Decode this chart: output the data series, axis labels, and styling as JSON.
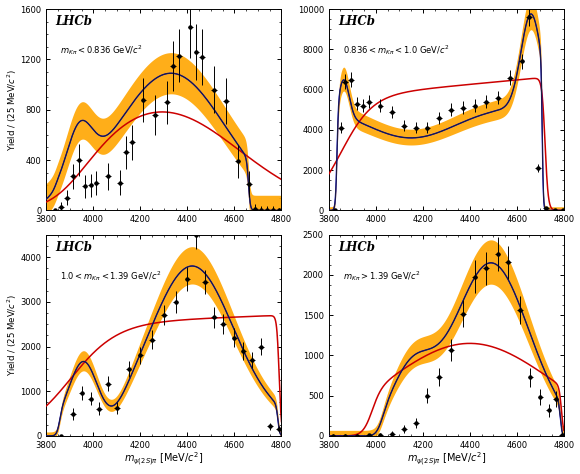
{
  "panels": [
    {
      "label": "$m_{K\\pi} < 0.836$ GeV/$c^2$",
      "ylim": [
        0,
        1600
      ],
      "yticks": [
        0,
        400,
        800,
        1200,
        1600
      ],
      "ylabel": "Yield / (25 MeV/$c^2$)"
    },
    {
      "label": "$0.836 < m_{K\\pi} < 1.0$ GeV/$c^2$",
      "ylim": [
        0,
        10000
      ],
      "yticks": [
        0,
        2000,
        4000,
        6000,
        8000,
        10000
      ],
      "ylabel": "Yield / (25 MeV/$c^2$)"
    },
    {
      "label": "$1.0 < m_{K\\pi} < 1.39$ GeV/$c^2$",
      "ylim": [
        0,
        4500
      ],
      "yticks": [
        0,
        1000,
        2000,
        3000,
        4000
      ],
      "ylabel": "Yield / (25 MeV/$c^2$)"
    },
    {
      "label": "$m_{K\\pi} > 1.39$ GeV/$c^2$",
      "ylim": [
        0,
        2500
      ],
      "yticks": [
        0,
        500,
        1000,
        1500,
        2000,
        2500
      ],
      "ylabel": "Yield / (25 MeV/$c^2$)"
    }
  ],
  "xlim": [
    3800,
    4800
  ],
  "xticks": [
    3800,
    4000,
    4200,
    4400,
    4600,
    4800
  ],
  "xlabel": "$m_{\\psi(2S)\\pi}$ [MeV/$c^2$]",
  "orange_color": "#FFA500",
  "blue_color": "#0000CC",
  "red_color": "#CC0000",
  "black_color": "#000000"
}
